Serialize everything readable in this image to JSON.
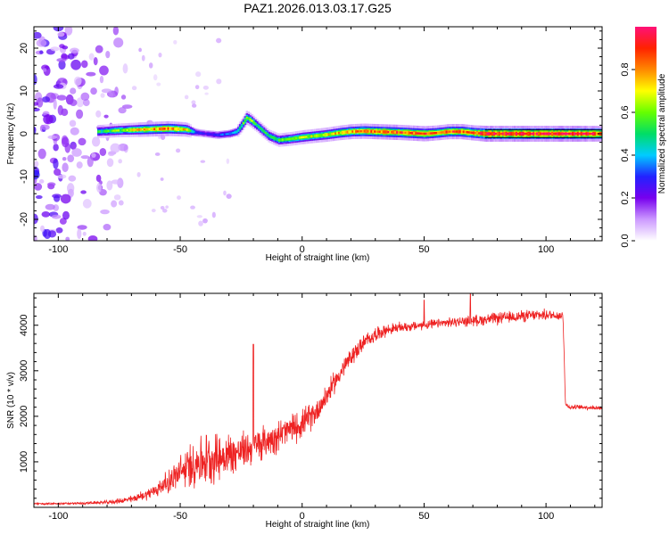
{
  "title": "PAZ1.2026.013.03.17.G25",
  "chart_data": [
    {
      "type": "heatmap",
      "id": "spectrogram",
      "xlabel": "Height of straight line (km)",
      "ylabel": "Frequency (Hz)",
      "xlim": [
        -110,
        123
      ],
      "ylim": [
        -25,
        25
      ],
      "xticks": [
        -100,
        -50,
        0,
        50,
        100
      ],
      "xtick_labels": [
        "-100",
        "-50",
        "0",
        "50",
        "100"
      ],
      "yticks": [
        -20,
        -10,
        0,
        10,
        20
      ],
      "ytick_labels": [
        "-20",
        "-10",
        "0",
        "10",
        "20"
      ],
      "colorbar": {
        "label": "Normalized spectral amplitude",
        "range": [
          0,
          1
        ],
        "ticks": [
          0,
          0.2,
          0.4,
          0.6,
          0.8
        ],
        "tick_labels": [
          "0.0",
          "0.2",
          "0.4",
          "0.6",
          "0.8"
        ],
        "stops": [
          "#ffffff",
          "#cc99ff",
          "#7700ee",
          "#2222ff",
          "#00ccff",
          "#00dd66",
          "#66ff00",
          "#ffff00",
          "#ff8800",
          "#ff2200",
          "#ff1177"
        ]
      },
      "ridge": {
        "x": [
          -84,
          -75,
          -65,
          -55,
          -48,
          -44,
          -40,
          -35,
          -30,
          -27,
          -25,
          -23,
          -21,
          -18,
          -14,
          -10,
          -5,
          0,
          5,
          10,
          15,
          20,
          25,
          30,
          40,
          50,
          55,
          60,
          65,
          70,
          75,
          90,
          110,
          123
        ],
        "freq": [
          0.5,
          0.8,
          1.0,
          1.2,
          1.0,
          0.3,
          0,
          -0.3,
          0,
          0.5,
          2.0,
          3.8,
          3.0,
          1.5,
          -0.5,
          -1.5,
          -1.2,
          -0.8,
          -0.5,
          -0.2,
          0.2,
          0.5,
          0.6,
          0.5,
          0.3,
          0,
          0.2,
          0.5,
          0.5,
          0.2,
          0,
          0,
          0,
          0
        ],
        "amplitude": [
          0.5,
          0.6,
          0.75,
          0.8,
          0.7,
          0.3,
          0.25,
          0.3,
          0.35,
          0.4,
          0.55,
          0.65,
          0.6,
          0.5,
          0.5,
          0.55,
          0.6,
          0.65,
          0.65,
          0.7,
          0.75,
          0.8,
          0.85,
          0.85,
          0.85,
          0.85,
          0.8,
          0.85,
          0.85,
          0.85,
          0.95,
          0.95,
          0.95,
          0.9
        ]
      },
      "noise_region_x": [
        -110,
        -75
      ],
      "noise_amplitude": [
        0.05,
        0.2
      ]
    },
    {
      "type": "line",
      "id": "snr",
      "xlabel": "Height of straight line (km)",
      "ylabel": "SNR (10 * v/v)",
      "xlim": [
        -110,
        123
      ],
      "ylim": [
        0,
        4700
      ],
      "xticks": [
        -100,
        -50,
        0,
        50,
        100
      ],
      "xtick_labels": [
        "-100",
        "-50",
        "0",
        "50",
        "100"
      ],
      "yticks": [
        1000,
        2000,
        3000,
        4000
      ],
      "ytick_labels": [
        "1000",
        "2000",
        "3000",
        "4000"
      ],
      "series": [
        {
          "name": "SNR",
          "color": "#ee2222",
          "x": [
            -110,
            -100,
            -90,
            -80,
            -75,
            -70,
            -65,
            -60,
            -55,
            -50,
            -45,
            -40,
            -35,
            -30,
            -25,
            -20,
            -15,
            -10,
            -5,
            0,
            5,
            10,
            15,
            20,
            25,
            30,
            35,
            40,
            50,
            60,
            70,
            80,
            90,
            100,
            105,
            107,
            108,
            110,
            115,
            123
          ],
          "y": [
            80,
            80,
            90,
            110,
            140,
            180,
            260,
            380,
            560,
            760,
            950,
            1050,
            1100,
            1150,
            1230,
            1340,
            1450,
            1580,
            1700,
            1840,
            2050,
            2450,
            2900,
            3300,
            3600,
            3800,
            3900,
            3950,
            4000,
            4060,
            4100,
            4150,
            4200,
            4230,
            4220,
            4200,
            2250,
            2200,
            2200,
            2180
          ],
          "noise_amplitude": [
            20,
            20,
            25,
            40,
            60,
            80,
            110,
            160,
            250,
            380,
            520,
            580,
            540,
            500,
            420,
            380,
            360,
            360,
            340,
            320,
            290,
            260,
            230,
            200,
            180,
            160,
            130,
            110,
            100,
            100,
            120,
            130,
            130,
            120,
            110,
            110,
            60,
            50,
            50,
            50
          ],
          "spikes": [
            {
              "x": -20,
              "y": 3580
            },
            {
              "x": 69,
              "y": 4700
            },
            {
              "x": 50,
              "y": 4550
            }
          ]
        }
      ]
    }
  ]
}
